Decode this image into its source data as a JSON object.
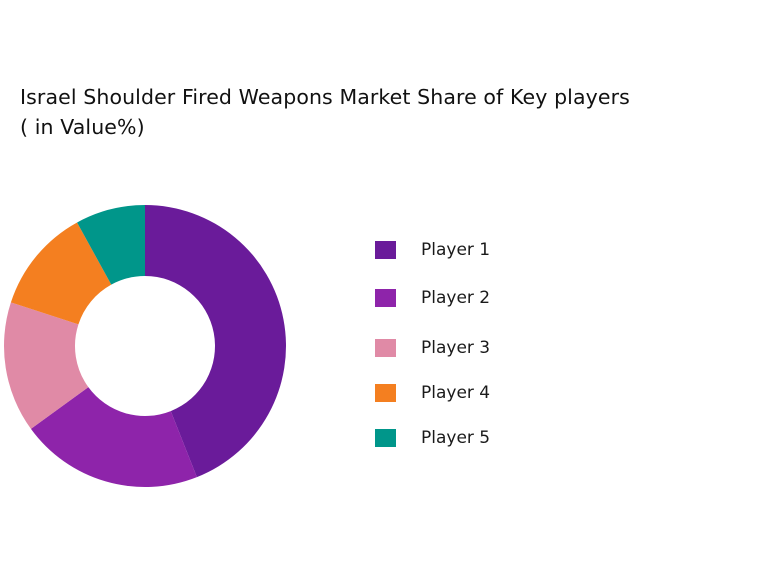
{
  "chart_data": {
    "type": "pie",
    "title": "Israel Shoulder Fired Weapons Market Share of Key players",
    "subtitle": "( in Value%)",
    "categories": [
      "Player 1",
      "Player 2",
      "Player 3",
      "Player 4",
      "Player 5"
    ],
    "values": [
      44,
      21,
      15,
      12,
      8
    ],
    "colors": [
      "#6a1b9a",
      "#8e24aa",
      "#e08aa6",
      "#f47f20",
      "#00968a"
    ],
    "donut": true,
    "legend_position": "right"
  }
}
